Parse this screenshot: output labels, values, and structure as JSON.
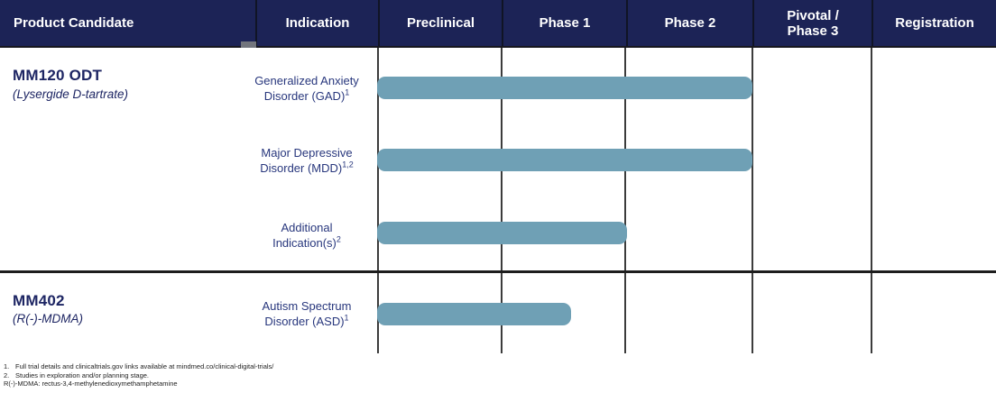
{
  "header": {
    "columns": [
      "Product Candidate",
      "Indication",
      "Preclinical",
      "Phase 1",
      "Phase 2",
      "Pivotal / Phase 3",
      "Registration"
    ]
  },
  "products": [
    {
      "name": "MM120 ODT",
      "subtitle": "(Lysergide D-tartrate)"
    },
    {
      "name": "MM402",
      "subtitle": "(R(-)-MDMA)"
    }
  ],
  "rows": [
    {
      "product": "MM120 ODT",
      "indication_line1": "Generalized Anxiety",
      "indication_line2": "Disorder (GAD)",
      "sup": "1"
    },
    {
      "product": "MM120 ODT",
      "indication_line1": "Major Depressive",
      "indication_line2": "Disorder (MDD)",
      "sup": "1,2"
    },
    {
      "product": "MM120 ODT",
      "indication_line1": "Additional",
      "indication_line2": "Indication(s)",
      "sup": "2"
    },
    {
      "product": "MM402",
      "indication_line1": "Autism Spectrum",
      "indication_line2": "Disorder (ASD)",
      "sup": "1"
    }
  ],
  "footnotes": [
    {
      "marker": "1.",
      "text": "Full trial details and clinicaltrials.gov links available at mindmed.co/clinical-digital-trials/"
    },
    {
      "marker": "2.",
      "text": "Studies in exploration and/or planning stage."
    },
    {
      "marker": "",
      "text": "R(-)-MDMA: rectus-3,4-methylenedioxymethamphetamine"
    }
  ],
  "colors": {
    "header_bg": "#1C2356",
    "header_text": "#FFFFFF",
    "product_text": "#1D2563",
    "indication_text": "#28377D",
    "gridline": "#3C3C3C",
    "bar": "#6FA0B5"
  },
  "chart_data": {
    "type": "bar",
    "variant": "clinical-pipeline-gantt",
    "title": "Clinical development pipeline",
    "phases": [
      "Preclinical",
      "Phase 1",
      "Phase 2",
      "Pivotal / Phase 3",
      "Registration"
    ],
    "bar_color": "#6FA0B5",
    "bars": [
      {
        "product": "MM120 ODT (Lysergide D-tartrate)",
        "indication": "Generalized Anxiety Disorder (GAD)",
        "footnote_refs": "1",
        "start_phase": "Preclinical",
        "phases_spanned": 3.0,
        "progress_note": "bar runs through end of Phase 2"
      },
      {
        "product": "MM120 ODT (Lysergide D-tartrate)",
        "indication": "Major Depressive Disorder (MDD)",
        "footnote_refs": "1,2",
        "start_phase": "Preclinical",
        "phases_spanned": 3.0,
        "progress_note": "bar runs through end of Phase 2"
      },
      {
        "product": "MM120 ODT (Lysergide D-tartrate)",
        "indication": "Additional Indication(s)",
        "footnote_refs": "2",
        "start_phase": "Preclinical",
        "phases_spanned": 2.0,
        "progress_note": "bar runs through end of Phase 1"
      },
      {
        "product": "MM402 (R(-)-MDMA)",
        "indication": "Autism Spectrum Disorder (ASD)",
        "footnote_refs": "1",
        "start_phase": "Preclinical",
        "phases_spanned": 1.55,
        "progress_note": "bar ends mid Phase 1"
      }
    ]
  }
}
